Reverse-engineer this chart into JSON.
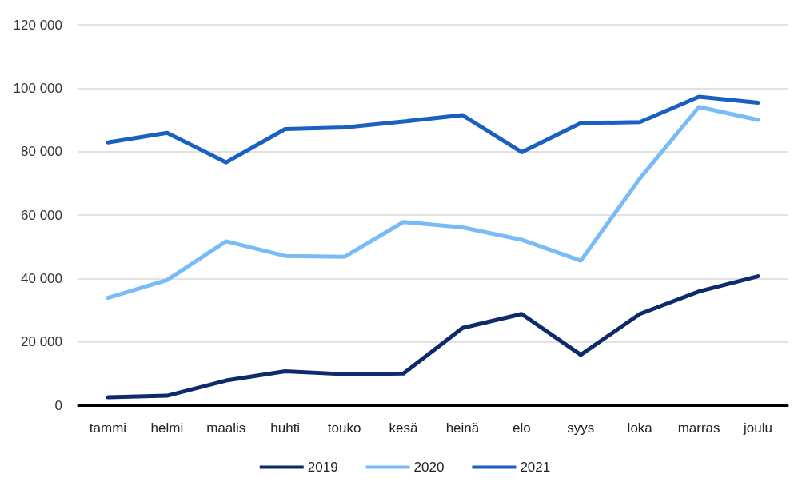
{
  "chart_data": {
    "type": "line",
    "categories": [
      "tammi",
      "helmi",
      "maalis",
      "huhti",
      "touko",
      "kesä",
      "heinä",
      "elo",
      "syys",
      "loka",
      "marras",
      "joulu"
    ],
    "series": [
      {
        "name": "2019",
        "color": "#0d2a6b",
        "values": [
          2500,
          3000,
          7800,
          10700,
          9800,
          10000,
          24400,
          28800,
          15900,
          28800,
          35900,
          40700
        ]
      },
      {
        "name": "2020",
        "color": "#78bbf7",
        "values": [
          33900,
          39500,
          51700,
          47100,
          46800,
          57800,
          56100,
          52200,
          45600,
          71500,
          94100,
          90000
        ]
      },
      {
        "name": "2021",
        "color": "#1a5fc2",
        "values": [
          82900,
          85900,
          76600,
          87100,
          87600,
          89500,
          91500,
          79800,
          89000,
          89300,
          97300,
          95400
        ]
      }
    ],
    "ylim": [
      0,
      120000
    ],
    "yticks": [
      {
        "value": 0,
        "label": "0"
      },
      {
        "value": 20000,
        "label": "20 000"
      },
      {
        "value": 40000,
        "label": "40 000"
      },
      {
        "value": 60000,
        "label": "60 000"
      },
      {
        "value": 80000,
        "label": "80 000"
      },
      {
        "value": 100000,
        "label": "100 000"
      },
      {
        "value": 120000,
        "label": "120 000"
      }
    ],
    "grid": "y",
    "legend": "bottom",
    "marker": "none",
    "line_style": "solid"
  }
}
